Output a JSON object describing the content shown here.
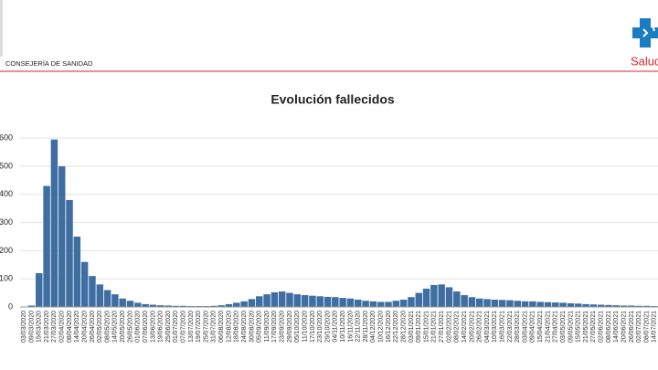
{
  "header": {
    "department": "CONSEJERÍA DE SANIDAD",
    "logo_text": "Salud"
  },
  "chart_data": {
    "type": "bar",
    "title": "Evolución fallecidos",
    "color": "#3f6ea3",
    "grid": true,
    "ylim": [
      0,
      620
    ],
    "yticks": [
      0,
      100,
      200,
      300,
      400,
      500,
      600
    ],
    "categories": [
      "03/03/2020",
      "09/03/2020",
      "15/03/2020",
      "21/03/2020",
      "27/03/2020",
      "02/04/2020",
      "08/04/2020",
      "14/04/2020",
      "20/04/2020",
      "26/04/2020",
      "02/05/2020",
      "08/05/2020",
      "14/05/2020",
      "20/05/2020",
      "26/05/2020",
      "01/06/2020",
      "07/06/2020",
      "13/06/2020",
      "19/06/2020",
      "25/06/2020",
      "01/07/2020",
      "07/07/2020",
      "13/07/2020",
      "19/07/2020",
      "25/07/2020",
      "31/07/2020",
      "06/08/2020",
      "12/08/2020",
      "18/08/2020",
      "24/08/2020",
      "30/08/2020",
      "05/09/2020",
      "11/09/2020",
      "17/09/2020",
      "23/09/2020",
      "29/09/2020",
      "05/10/2020",
      "11/10/2020",
      "17/10/2020",
      "23/10/2020",
      "29/10/2020",
      "04/11/2020",
      "10/11/2020",
      "16/11/2020",
      "22/11/2020",
      "28/11/2020",
      "04/12/2020",
      "10/12/2020",
      "16/12/2020",
      "22/12/2020",
      "28/12/2020",
      "03/01/2021",
      "09/01/2021",
      "15/01/2021",
      "21/01/2021",
      "27/01/2021",
      "02/02/2021",
      "08/02/2021",
      "14/02/2021",
      "20/02/2021",
      "26/02/2021",
      "04/03/2021",
      "10/03/2021",
      "16/03/2021",
      "22/03/2021",
      "28/03/2021",
      "03/04/2021",
      "09/04/2021",
      "15/04/2021",
      "21/04/2021",
      "27/04/2021",
      "03/05/2021",
      "09/05/2021",
      "15/05/2021",
      "21/05/2021",
      "27/05/2021",
      "02/06/2021",
      "08/06/2021",
      "14/06/2021",
      "20/06/2021",
      "26/06/2021",
      "02/07/2021",
      "08/07/2021",
      "14/07/2021"
    ],
    "values": [
      0,
      5,
      120,
      430,
      595,
      500,
      380,
      250,
      160,
      110,
      80,
      60,
      45,
      30,
      22,
      15,
      10,
      8,
      6,
      5,
      4,
      4,
      3,
      3,
      3,
      4,
      6,
      10,
      15,
      20,
      28,
      38,
      45,
      52,
      55,
      50,
      45,
      42,
      40,
      38,
      36,
      35,
      32,
      30,
      26,
      22,
      20,
      18,
      18,
      22,
      26,
      35,
      50,
      65,
      78,
      80,
      70,
      55,
      42,
      35,
      30,
      28,
      26,
      25,
      24,
      22,
      20,
      20,
      18,
      17,
      16,
      15,
      13,
      12,
      10,
      9,
      8,
      7,
      6,
      5,
      5,
      4,
      4,
      3
    ]
  }
}
